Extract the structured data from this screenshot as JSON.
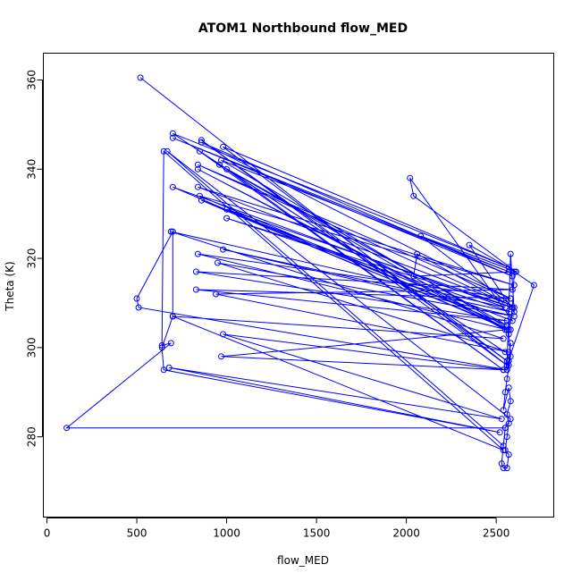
{
  "chart_data": {
    "type": "line",
    "title": "ATOM1 Northbound flow_MED",
    "xlabel": "flow_MED",
    "ylabel": "Theta (K)",
    "xlim": [
      -20,
      2820
    ],
    "ylim": [
      262,
      366
    ],
    "x_ticks": [
      0,
      500,
      1000,
      1500,
      2000,
      2500
    ],
    "y_ticks": [
      280,
      300,
      320,
      340,
      360
    ],
    "grid": false,
    "legend": "none",
    "colors": {
      "series": "#0000ff",
      "axes": "#000000",
      "background": "#ffffff"
    },
    "marker": "open-circle",
    "series": [
      {
        "points": [
          [
            520,
            360.5
          ],
          [
            2560,
            296
          ],
          [
            860,
            346.5
          ],
          [
            2560,
            297
          ],
          [
            980,
            345
          ],
          [
            2570,
            318
          ],
          [
            700,
            348
          ],
          [
            2550,
            299
          ],
          [
            850,
            344
          ],
          [
            2540,
            295
          ],
          [
            1000,
            340
          ],
          [
            2560,
            305
          ],
          [
            960,
            341
          ],
          [
            2550,
            304
          ],
          [
            840,
            340
          ],
          [
            2570,
            304
          ],
          [
            700,
            336
          ],
          [
            2550,
            309
          ],
          [
            690,
            326
          ],
          [
            2540,
            302
          ],
          [
            700,
            307
          ],
          [
            640,
            300
          ],
          [
            650,
            295
          ],
          [
            2520,
            281
          ],
          [
            680,
            295.5
          ],
          [
            2530,
            284
          ],
          [
            980,
            303
          ],
          [
            2540,
            295
          ],
          [
            970,
            298
          ],
          [
            2560,
            304
          ],
          [
            840,
            321
          ],
          [
            2580,
            311
          ],
          [
            830,
            313
          ],
          [
            2560,
            306
          ],
          [
            830,
            317
          ],
          [
            2590,
            313
          ],
          [
            940,
            312
          ],
          [
            2570,
            299
          ],
          [
            950,
            319
          ],
          [
            2600,
            307
          ],
          [
            980,
            322
          ],
          [
            2580,
            308
          ],
          [
            1000,
            329
          ],
          [
            2590,
            309
          ],
          [
            1000,
            331
          ],
          [
            2560,
            305
          ],
          [
            850,
            334
          ],
          [
            2600,
            314
          ],
          [
            840,
            336
          ],
          [
            2550,
            310
          ],
          [
            840,
            341
          ],
          [
            2580,
            311
          ],
          [
            860,
            346
          ],
          [
            2590,
            316
          ],
          [
            700,
            347
          ],
          [
            2570,
            317
          ],
          [
            970,
            342
          ],
          [
            2580,
            304
          ],
          [
            860,
            333
          ],
          [
            2590,
            306
          ],
          [
            2020,
            338
          ],
          [
            2040,
            334
          ],
          [
            2610,
            317
          ],
          [
            2040,
            316
          ],
          [
            2060,
            321
          ],
          [
            2600,
            309
          ],
          [
            2080,
            325
          ],
          [
            2610,
            317
          ],
          [
            2350,
            323
          ],
          [
            2600,
            308
          ],
          [
            2580,
            321
          ],
          [
            2560,
            296
          ],
          [
            2710,
            314
          ],
          [
            2600,
            317
          ],
          [
            2590,
            309
          ],
          [
            2570,
            303
          ],
          [
            2580,
            298
          ],
          [
            2560,
            293
          ],
          [
            2550,
            290
          ],
          [
            2540,
            286
          ],
          [
            2570,
            291
          ],
          [
            2580,
            288
          ],
          [
            2560,
            285
          ],
          [
            2570,
            283
          ],
          [
            2560,
            280
          ],
          [
            2550,
            277
          ],
          [
            2570,
            276
          ],
          [
            2560,
            273
          ],
          [
            2540,
            273
          ],
          [
            2530,
            274
          ],
          [
            2550,
            282
          ],
          [
            2580,
            284
          ],
          [
            670,
            344
          ],
          [
            2540,
            278
          ],
          [
            2550,
            282
          ],
          [
            110,
            282
          ],
          [
            690,
            301
          ],
          [
            640,
            300.5
          ],
          [
            650,
            344
          ],
          [
            2540,
            277
          ],
          [
            700,
            307
          ],
          [
            700,
            326
          ],
          [
            500,
            311
          ],
          [
            510,
            309
          ],
          [
            2560,
            295
          ],
          [
            2570,
            296
          ],
          [
            2580,
            301
          ],
          [
            2570,
            297
          ],
          [
            2560,
            295
          ]
        ]
      }
    ]
  }
}
